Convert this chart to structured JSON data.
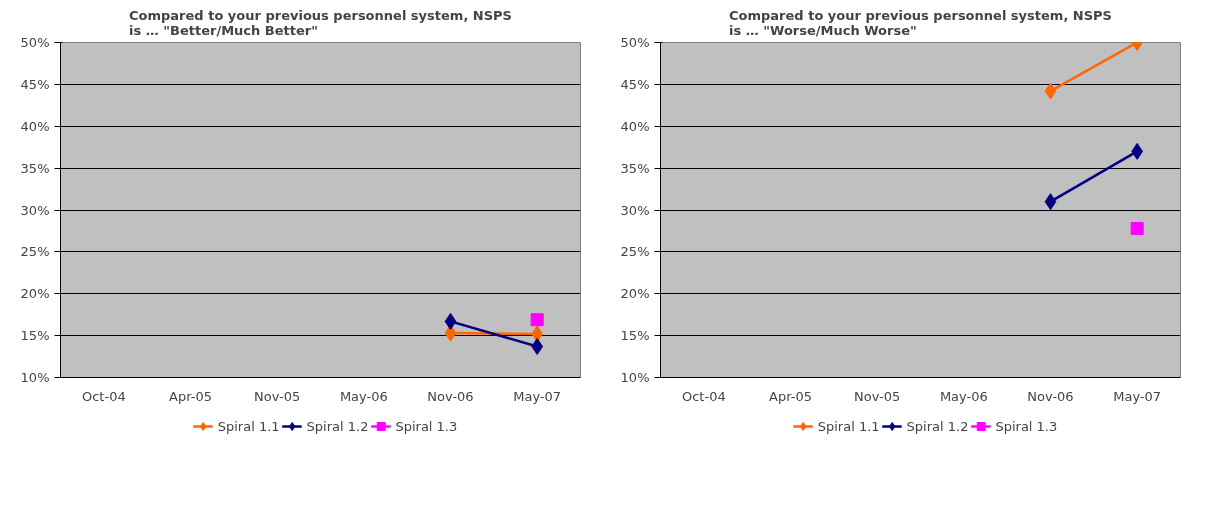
{
  "chart_data": [
    {
      "type": "line",
      "title": "Compared to your previous personnel system, NSPS\nis … \"Better/Much Better\"",
      "categories": [
        "Oct-04",
        "Apr-05",
        "Nov-05",
        "May-06",
        "Nov-06",
        "May-07"
      ],
      "series": [
        {
          "name": "Spiral 1.1",
          "color": "#ff6600",
          "marker": "diamond",
          "values": [
            null,
            null,
            null,
            null,
            15.3,
            15.2
          ]
        },
        {
          "name": "Spiral 1.2",
          "color": "#000080",
          "marker": "diamond",
          "values": [
            null,
            null,
            null,
            null,
            16.7,
            13.7
          ]
        },
        {
          "name": "Spiral 1.3",
          "color": "#ff00ff",
          "marker": "square",
          "values": [
            null,
            null,
            null,
            null,
            null,
            16.9
          ]
        }
      ],
      "ylim": [
        10,
        50
      ],
      "yticks": [
        {
          "value": 10,
          "label": "10%"
        },
        {
          "value": 15,
          "label": "15%"
        },
        {
          "value": 20,
          "label": "20%"
        },
        {
          "value": 25,
          "label": "25%"
        },
        {
          "value": 30,
          "label": "30%"
        },
        {
          "value": 35,
          "label": "35%"
        },
        {
          "value": 40,
          "label": "40%"
        },
        {
          "value": 45,
          "label": "45%"
        },
        {
          "value": 50,
          "label": "50%"
        }
      ],
      "grid": "y",
      "legend": "bottom"
    },
    {
      "type": "line",
      "title": "Compared to your previous personnel system, NSPS\nis … \"Worse/Much Worse\"",
      "categories": [
        "Oct-04",
        "Apr-05",
        "Nov-05",
        "May-06",
        "Nov-06",
        "May-07"
      ],
      "series": [
        {
          "name": "Spiral 1.1",
          "color": "#ff6600",
          "marker": "diamond",
          "values": [
            null,
            null,
            null,
            null,
            44.2,
            50
          ]
        },
        {
          "name": "Spiral 1.2",
          "color": "#000080",
          "marker": "diamond",
          "values": [
            null,
            null,
            null,
            null,
            31,
            37
          ]
        },
        {
          "name": "Spiral 1.3",
          "color": "#ff00ff",
          "marker": "square",
          "values": [
            null,
            null,
            null,
            null,
            null,
            27.8
          ]
        }
      ],
      "ylim": [
        10,
        50
      ],
      "yticks": [
        {
          "value": 10,
          "label": "10%"
        },
        {
          "value": 15,
          "label": "15%"
        },
        {
          "value": 20,
          "label": "20%"
        },
        {
          "value": 25,
          "label": "25%"
        },
        {
          "value": 30,
          "label": "30%"
        },
        {
          "value": 35,
          "label": "35%"
        },
        {
          "value": 40,
          "label": "40%"
        },
        {
          "value": 45,
          "label": "45%"
        },
        {
          "value": 50,
          "label": "50%"
        }
      ],
      "grid": "y",
      "legend": "bottom"
    }
  ]
}
